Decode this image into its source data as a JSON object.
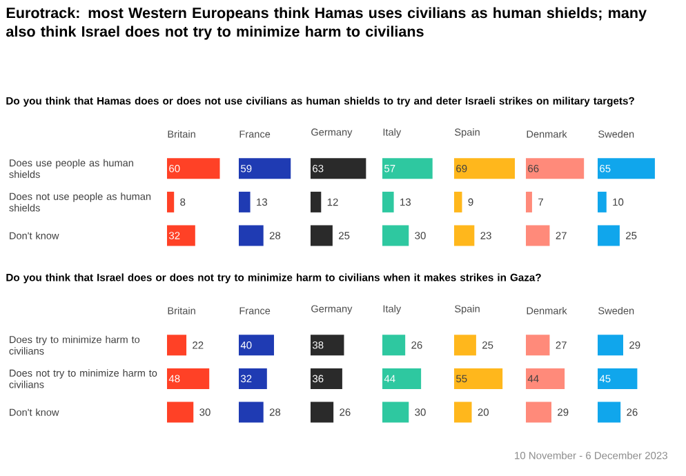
{
  "chart_data": [
    {
      "type": "other",
      "title": "Eurotrack: most Western Europeans think Hamas uses civilians as human shields; many also think Israel does not try to minimize harm to civilians",
      "annotations": [
        "10 November - 6 December 2023"
      ]
    },
    {
      "type": "bar",
      "orientation": "horizontal",
      "title": "Britain",
      "subtitle": "Do you think that Hamas does or does not use civilians as human shields to try and deter Israeli strikes on military targets?",
      "categories": [
        "Does use people as human shields",
        "Does not use people as human shields",
        "Don't know"
      ],
      "values": [
        60,
        8,
        32
      ],
      "color": "#ff4126",
      "data_labels": true,
      "tick_labels": "y"
    },
    {
      "type": "bar",
      "orientation": "horizontal",
      "title": "France",
      "categories": [
        null,
        null,
        null
      ],
      "values": [
        59,
        13,
        28
      ],
      "color": "#1f3bb3",
      "data_labels": true
    },
    {
      "type": "bar",
      "orientation": "horizontal",
      "title": "Germany",
      "categories": [
        null,
        null,
        null
      ],
      "values": [
        63,
        12,
        25
      ],
      "color": "#2a2a2a",
      "data_labels": true
    },
    {
      "type": "bar",
      "orientation": "horizontal",
      "title": "Italy",
      "categories": [
        null,
        null,
        null
      ],
      "values": [
        57,
        13,
        30
      ],
      "color": "#2ec8a0",
      "data_labels": true
    },
    {
      "type": "bar",
      "orientation": "horizontal",
      "title": "Spain",
      "categories": [
        null,
        null,
        null
      ],
      "values": [
        69,
        9,
        23
      ],
      "color": "#ffb71c",
      "data_labels": true
    },
    {
      "type": "bar",
      "orientation": "horizontal",
      "title": "Denmark",
      "categories": [
        null,
        null,
        null
      ],
      "values": [
        66,
        7,
        27
      ],
      "color": "#ff8a7a",
      "data_labels": true
    },
    {
      "type": "bar",
      "orientation": "horizontal",
      "title": "Sweden",
      "categories": [
        null,
        null,
        null
      ],
      "values": [
        65,
        10,
        25
      ],
      "color": "#10a6ec",
      "data_labels": true
    },
    {
      "type": "bar",
      "orientation": "horizontal",
      "title": "Britain",
      "subtitle": "Do you think that Israel does or does not try to minimize harm to civilians when it makes strikes in Gaza?",
      "categories": [
        "Does try to minimize harm to civilians",
        "Does not try to minimize harm to civilians",
        "Don't know"
      ],
      "values": [
        22,
        48,
        30
      ],
      "color": "#ff4126",
      "data_labels": true,
      "tick_labels": "y"
    },
    {
      "type": "bar",
      "orientation": "horizontal",
      "title": "France",
      "categories": [
        null,
        null,
        null
      ],
      "values": [
        40,
        32,
        28
      ],
      "color": "#1f3bb3",
      "data_labels": true
    },
    {
      "type": "bar",
      "orientation": "horizontal",
      "title": "Germany",
      "categories": [
        null,
        null,
        null
      ],
      "values": [
        38,
        36,
        26
      ],
      "color": "#2a2a2a",
      "data_labels": true
    },
    {
      "type": "bar",
      "orientation": "horizontal",
      "title": "Italy",
      "categories": [
        null,
        null,
        null
      ],
      "values": [
        26,
        44,
        30
      ],
      "color": "#2ec8a0",
      "data_labels": true
    },
    {
      "type": "bar",
      "orientation": "horizontal",
      "title": "Spain",
      "categories": [
        null,
        null,
        null
      ],
      "values": [
        25,
        55,
        20
      ],
      "color": "#ffb71c",
      "data_labels": true
    },
    {
      "type": "bar",
      "orientation": "horizontal",
      "title": "Denmark",
      "categories": [
        null,
        null,
        null
      ],
      "values": [
        27,
        44,
        29
      ],
      "color": "#ff8a7a",
      "data_labels": true
    },
    {
      "type": "bar",
      "orientation": "horizontal",
      "title": "Sweden",
      "categories": [
        null,
        null,
        null
      ],
      "values": [
        29,
        45,
        26
      ],
      "color": "#10a6ec",
      "data_labels": true
    }
  ]
}
